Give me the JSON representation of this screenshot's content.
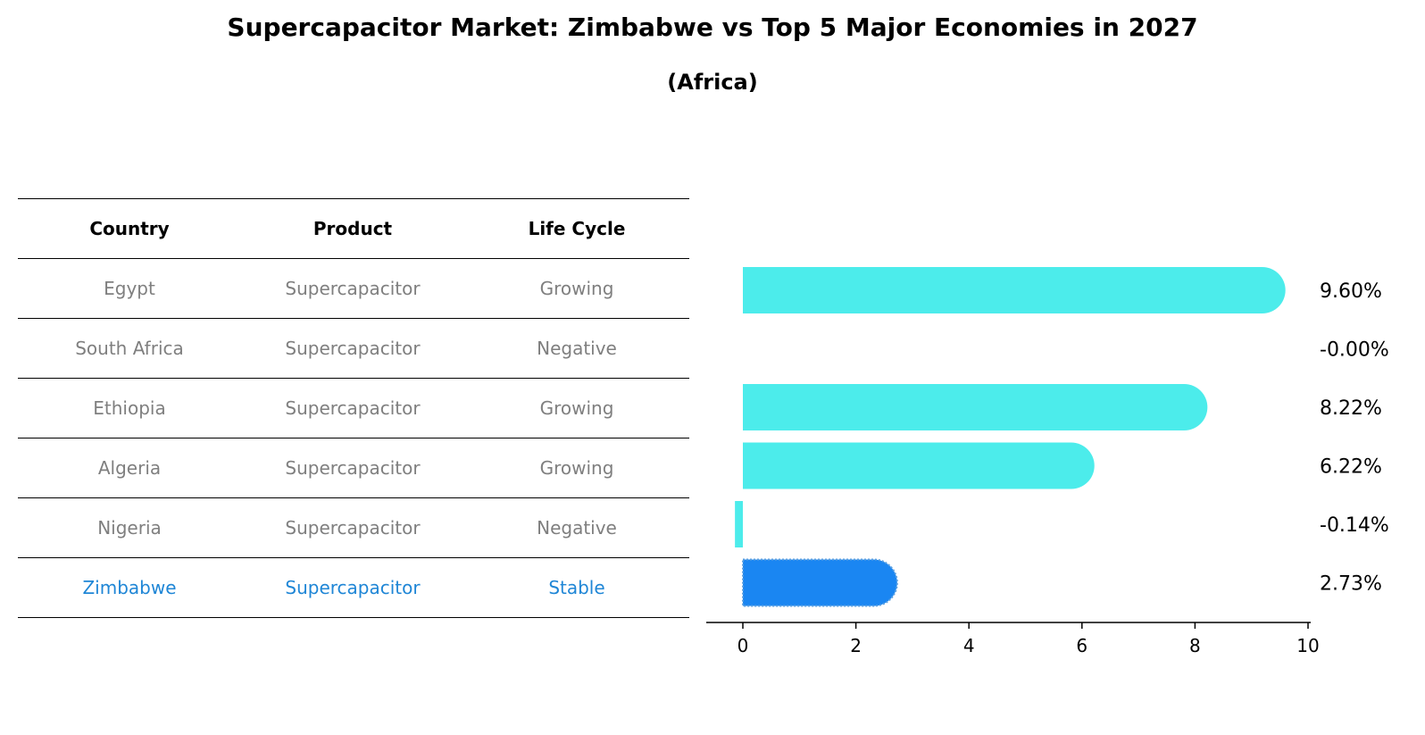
{
  "title": "Supercapacitor Market: Zimbabwe vs Top 5 Major Economies in 2027",
  "subtitle": "(Africa)",
  "table": {
    "headers": [
      "Country",
      "Product",
      "Life Cycle"
    ],
    "rows": [
      [
        "Egypt",
        "Supercapacitor",
        "Growing"
      ],
      [
        "South Africa",
        "Supercapacitor",
        "Negative"
      ],
      [
        "Ethiopia",
        "Supercapacitor",
        "Growing"
      ],
      [
        "Algeria",
        "Supercapacitor",
        "Growing"
      ],
      [
        "Nigeria",
        "Supercapacitor",
        "Negative"
      ],
      [
        "Zimbabwe",
        "Supercapacitor",
        "Stable"
      ]
    ],
    "highlight_row": 5
  },
  "colors": {
    "bar": "#4ceceb",
    "highlight": "#1a86f2",
    "highlight_text": "#1f86d6"
  },
  "chart_data": {
    "type": "bar",
    "orientation": "horizontal",
    "title": "Supercapacitor Market: Zimbabwe vs Top 5 Major Economies in 2027",
    "subtitle": "(Africa)",
    "categories": [
      "Egypt",
      "South Africa",
      "Ethiopia",
      "Algeria",
      "Nigeria",
      "Zimbabwe"
    ],
    "values": [
      9.6,
      -0.0,
      8.22,
      6.22,
      -0.14,
      2.73
    ],
    "value_labels": [
      "9.60%",
      "-0.00%",
      "8.22%",
      "6.22%",
      "-0.14%",
      "2.73%"
    ],
    "highlight": "Zimbabwe",
    "xlim": [
      -0.65,
      10.05
    ],
    "xticks": [
      0,
      2,
      4,
      6,
      8,
      10
    ],
    "xlabel": "",
    "ylabel": "",
    "grid": false
  }
}
